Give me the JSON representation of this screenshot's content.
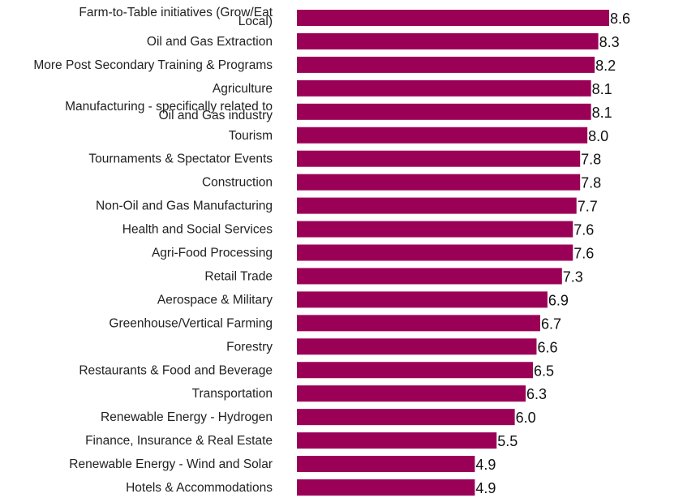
{
  "chart_data": {
    "type": "bar",
    "orientation": "horizontal",
    "categories": [
      "Farm-to-Table initiatives (Grow/Eat Local)",
      "Oil and Gas Extraction",
      "More Post Secondary Training & Programs",
      "Agriculture",
      "Manufacturing - specifically related to Oil and Gas industry",
      "Tourism",
      "Tournaments & Spectator Events",
      "Construction",
      "Non-Oil and Gas Manufacturing",
      "Health and Social Services",
      "Agri-Food Processing",
      "Retail Trade",
      "Aerospace & Military",
      "Greenhouse/Vertical Farming",
      "Forestry",
      "Restaurants & Food and Beverage",
      "Transportation",
      "Renewable Energy - Hydrogen",
      "Finance, Insurance & Real Estate",
      "Renewable Energy - Wind and Solar",
      "Hotels & Accommodations"
    ],
    "category_lines": [
      [
        "Farm-to-Table initiatives (Grow/Eat",
        "Local)"
      ],
      [
        "Oil and Gas Extraction"
      ],
      [
        "More Post Secondary Training & Programs"
      ],
      [
        "Agriculture"
      ],
      [
        "Manufacturing - specifically related to",
        "Oil and Gas industry"
      ],
      [
        "Tourism"
      ],
      [
        "Tournaments & Spectator Events"
      ],
      [
        "Construction"
      ],
      [
        "Non-Oil and Gas Manufacturing"
      ],
      [
        "Health and Social Services"
      ],
      [
        "Agri-Food Processing"
      ],
      [
        "Retail Trade"
      ],
      [
        "Aerospace & Military"
      ],
      [
        "Greenhouse/Vertical Farming"
      ],
      [
        "Forestry"
      ],
      [
        "Restaurants & Food and Beverage"
      ],
      [
        "Transportation"
      ],
      [
        "Renewable Energy - Hydrogen"
      ],
      [
        "Finance, Insurance & Real Estate"
      ],
      [
        "Renewable Energy - Wind and Solar"
      ],
      [
        "Hotels & Accommodations"
      ]
    ],
    "values": [
      8.6,
      8.3,
      8.2,
      8.1,
      8.1,
      8.0,
      7.8,
      7.8,
      7.7,
      7.6,
      7.6,
      7.3,
      6.9,
      6.7,
      6.6,
      6.5,
      6.3,
      6.0,
      5.5,
      4.9,
      4.9
    ],
    "value_labels": [
      "8.6",
      "8.3",
      "8.2",
      "8.1",
      "8.1",
      "8.0",
      "7.8",
      "7.8",
      "7.7",
      "7.6",
      "7.6",
      "7.3",
      "6.9",
      "6.7",
      "6.6",
      "6.5",
      "6.3",
      "6.0",
      "5.5",
      "4.9",
      "4.9"
    ],
    "xlim": [
      0,
      8.6
    ],
    "bar_color": "#9b0057",
    "grid": false,
    "legend": "none",
    "title": "",
    "xlabel": "",
    "ylabel": ""
  }
}
